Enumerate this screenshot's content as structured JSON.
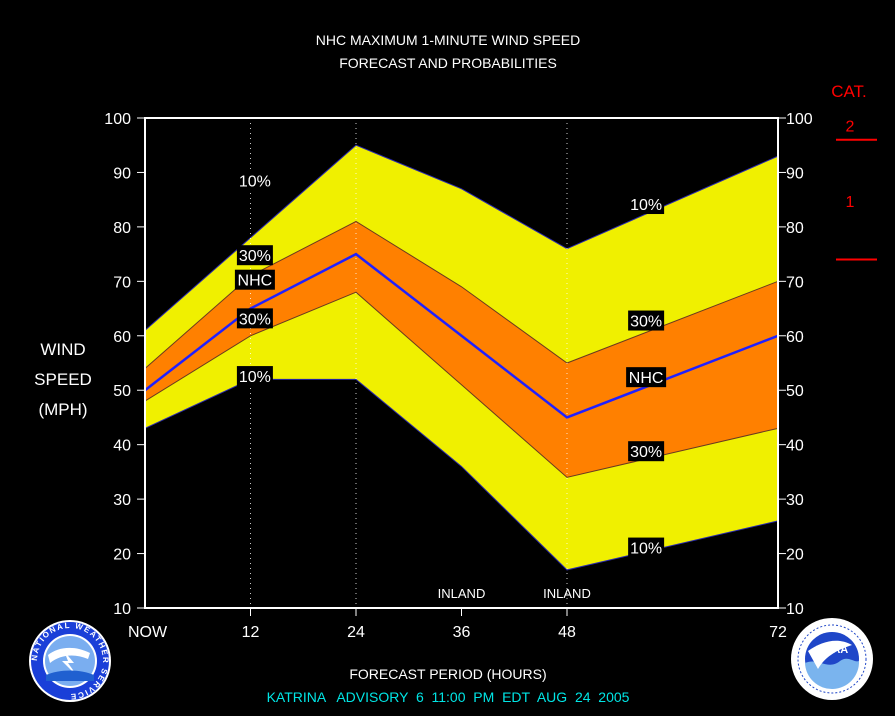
{
  "chart_data": {
    "type": "area",
    "title": "NHC MAXIMUM 1-MINUTE WIND SPEED",
    "subtitle": "FORECAST AND PROBABILITIES",
    "xlabel": "FORECAST PERIOD (HOURS)",
    "ylabel_lines": [
      "WIND",
      "SPEED",
      "(MPH)"
    ],
    "footer": "KATRINA   ADVISORY  6  11:00  PM  EDT  AUG  24  2005",
    "x": [
      0,
      12,
      24,
      36,
      48,
      72
    ],
    "x_tick_labels": [
      "NOW",
      "12",
      "24",
      "36",
      "48",
      "72"
    ],
    "xlim": [
      0,
      72
    ],
    "ylim": [
      10,
      100
    ],
    "y_ticks": [
      10,
      20,
      30,
      40,
      50,
      60,
      70,
      80,
      90,
      100
    ],
    "vertical_gridlines_at": [
      12,
      24,
      48
    ],
    "inland_labels": [
      {
        "x": 36,
        "text": "INLAND"
      },
      {
        "x": 48,
        "text": "INLAND"
      }
    ],
    "series": [
      {
        "name": "10%",
        "role": "upper-10",
        "values": [
          61,
          78,
          95,
          87,
          76,
          93
        ]
      },
      {
        "name": "30%",
        "role": "upper-30",
        "values": [
          54,
          71,
          81,
          69,
          55,
          70
        ]
      },
      {
        "name": "NHC",
        "role": "nhc",
        "values": [
          50,
          65,
          75,
          60,
          45,
          60
        ]
      },
      {
        "name": "30%",
        "role": "lower-30",
        "values": [
          48,
          60,
          68,
          51,
          34,
          43
        ]
      },
      {
        "name": "10%",
        "role": "lower-10",
        "values": [
          43,
          52,
          52,
          36,
          17,
          26
        ]
      }
    ],
    "band_labels": [
      {
        "text": "10%",
        "x": 12.5,
        "y": 88.5
      },
      {
        "text": "30%",
        "x": 12.5,
        "y": 74.8
      },
      {
        "text": "NHC",
        "x": 12.5,
        "y": 70.3
      },
      {
        "text": "30%",
        "x": 12.5,
        "y": 63.2
      },
      {
        "text": "10%",
        "x": 12.5,
        "y": 52.6
      },
      {
        "text": "10%",
        "x": 57,
        "y": 84.2
      },
      {
        "text": "30%",
        "x": 57,
        "y": 62.8
      },
      {
        "text": "NHC",
        "x": 57,
        "y": 52.4
      },
      {
        "text": "30%",
        "x": 57,
        "y": 38.8
      },
      {
        "text": "10%",
        "x": 57,
        "y": 21.1
      }
    ],
    "category_scale": {
      "title": "CAT.",
      "labels": [
        {
          "text": "2",
          "y": 98.6
        },
        {
          "text": "1",
          "y": 84.8
        }
      ],
      "boundaries_mph": [
        96,
        74
      ]
    },
    "colors": {
      "background": "#000000",
      "band_10": "#f0f000",
      "band_30": "#ff8000",
      "nhc_line": "#2020ff",
      "plot_frame": "#ffffff",
      "title_text": "#ffffff",
      "footer_text": "#00e5e5",
      "category_text": "#ff0000",
      "gridline": "#ffffff"
    }
  },
  "logos": {
    "left": {
      "name": "nws-logo",
      "text": "NATIONAL WEATHER SERVICE"
    },
    "right": {
      "name": "noaa-logo",
      "text": "NOAA"
    }
  }
}
